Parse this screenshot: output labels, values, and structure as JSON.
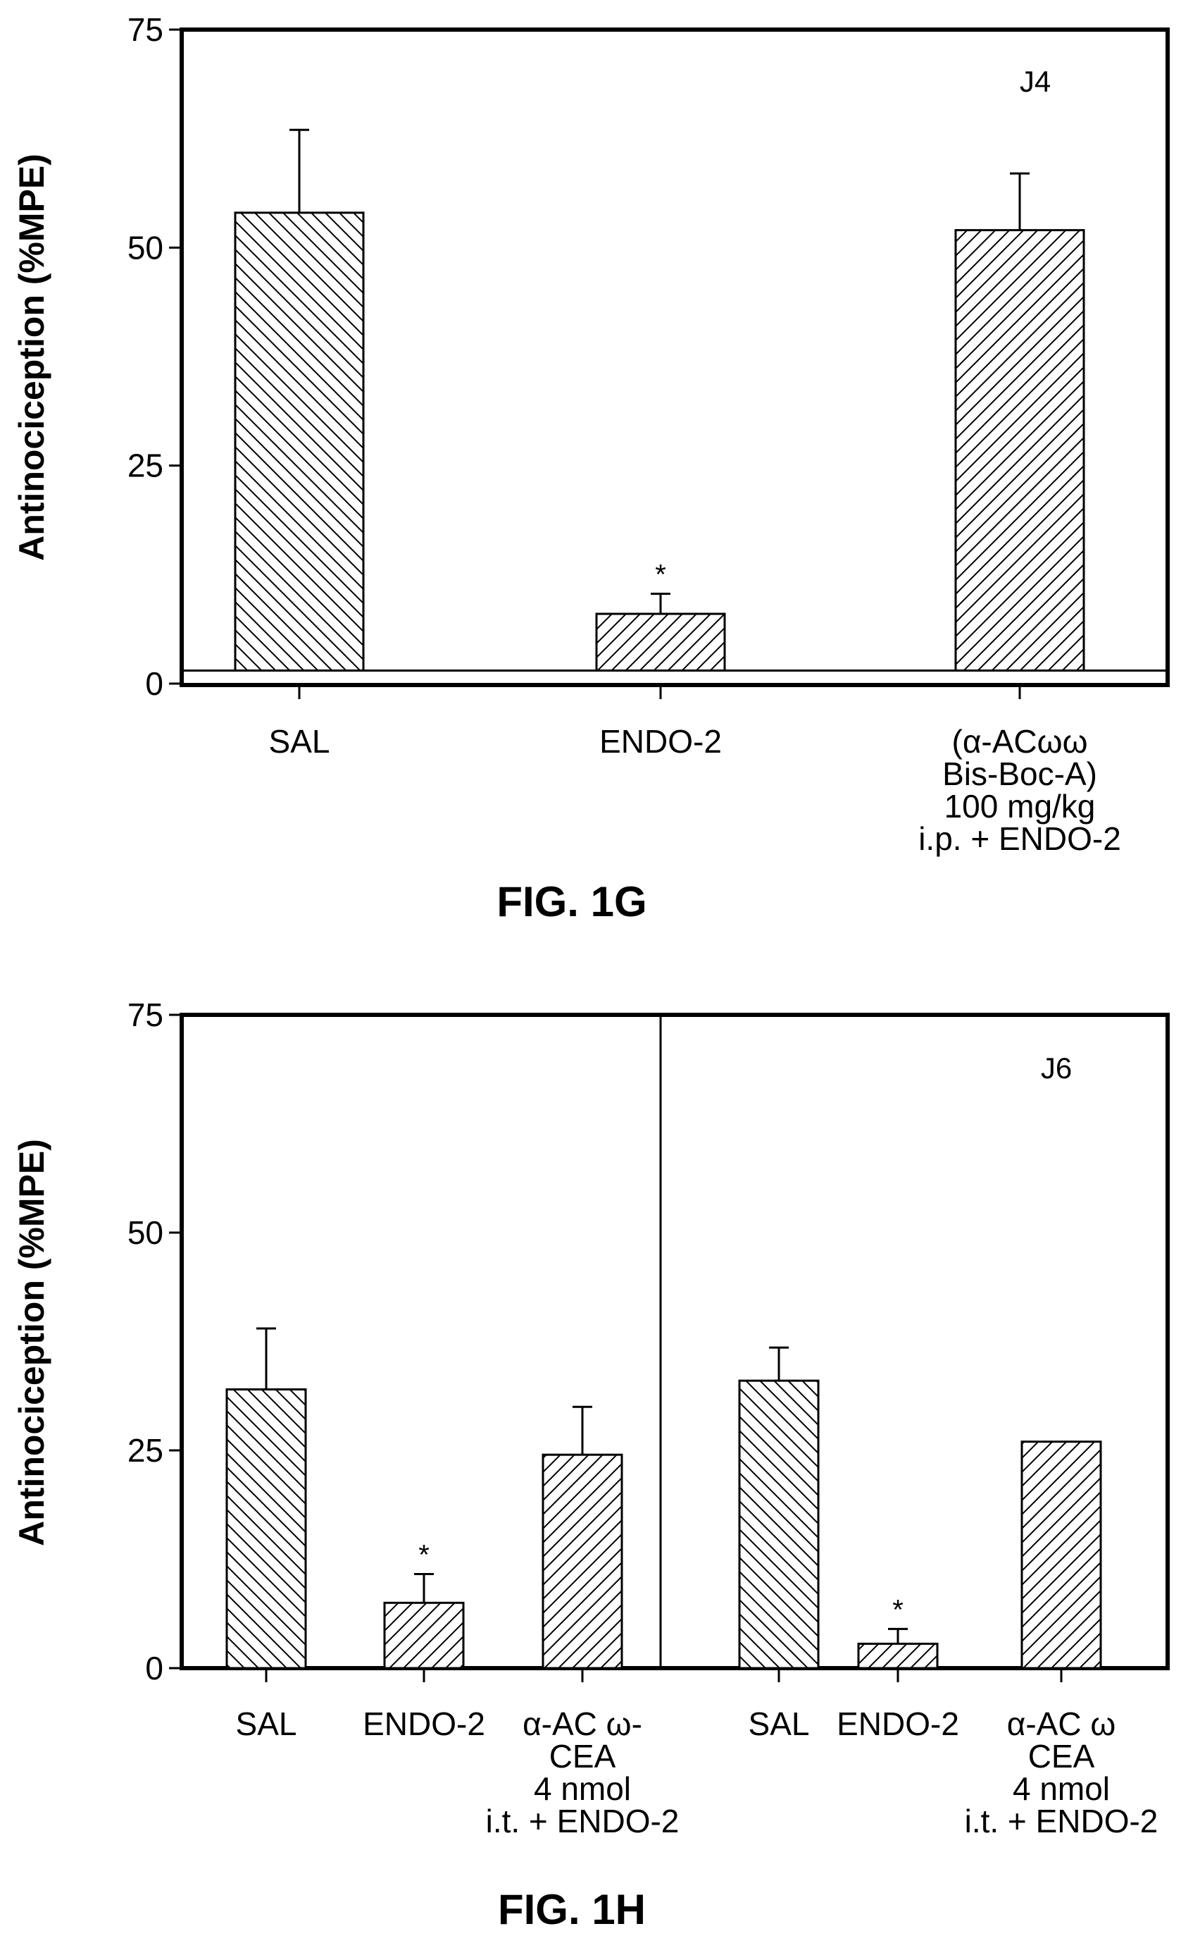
{
  "chart_data": [
    {
      "type": "bar",
      "caption": "FIG. 1G",
      "panel_label": "J4",
      "ylabel": "Antinociception (%MPE)",
      "xlabel": "",
      "ylim": [
        0,
        75
      ],
      "yticks": [
        "0",
        "25",
        "50",
        "75"
      ],
      "grid": false,
      "baseline": 1.5,
      "categories": [
        [
          "SAL"
        ],
        [
          "ENDO-2"
        ],
        [
          "(α-ACωω",
          "Bis-Boc-A)",
          "100 mg/kg",
          "i.p. + ENDO-2"
        ]
      ],
      "values": [
        54,
        8,
        52
      ],
      "errors": [
        9.5,
        2.3,
        6.5
      ],
      "hatch": [
        "back",
        "fwd",
        "fwd"
      ],
      "significance": [
        "",
        "*",
        ""
      ]
    },
    {
      "type": "bar",
      "caption": "FIG. 1H",
      "panel_label": "J6",
      "ylabel": "Antinociception (%MPE)",
      "xlabel": "",
      "ylim": [
        0,
        75
      ],
      "yticks": [
        "0",
        "25",
        "50",
        "75"
      ],
      "grid": false,
      "divider_after": 3,
      "categories": [
        [
          "SAL"
        ],
        [
          "ENDO-2"
        ],
        [
          "α-AC ω-",
          "CEA",
          "4 nmol",
          "i.t. + ENDO-2"
        ],
        [
          "SAL"
        ],
        [
          "ENDO-2"
        ],
        [
          "α-AC ω",
          "CEA",
          "4 nmol",
          "i.t. + ENDO-2"
        ]
      ],
      "values": [
        32,
        7.5,
        24.5,
        33,
        2.8,
        26
      ],
      "errors": [
        7,
        3.3,
        5.5,
        3.8,
        1.7,
        0
      ],
      "hatch": [
        "back",
        "fwd",
        "fwd",
        "back",
        "fwd",
        "fwd"
      ],
      "significance": [
        "",
        "*",
        "",
        "",
        "*",
        ""
      ]
    }
  ]
}
